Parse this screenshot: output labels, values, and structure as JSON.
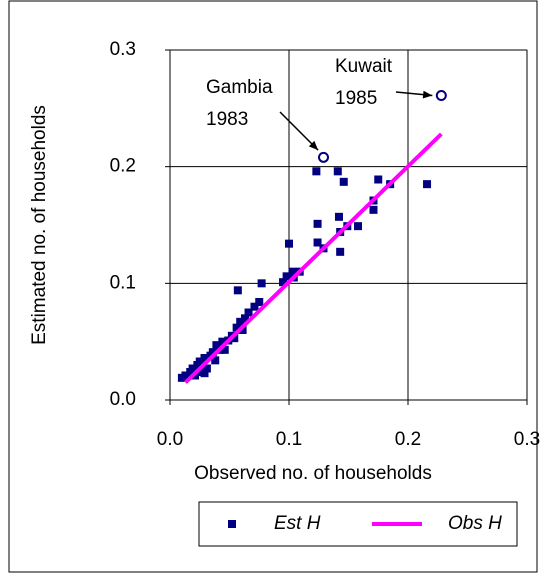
{
  "chart_data": {
    "type": "scatter",
    "xlabel": "Observed no. of households",
    "ylabel": "Estimated no. of households",
    "xlim": [
      0,
      0.3
    ],
    "ylim": [
      0,
      0.3
    ],
    "xticks": [
      {
        "value": 0,
        "label": "0.0"
      },
      0.1,
      0.2,
      0.3
    ],
    "yticks": [
      {
        "value": 0,
        "label": "0.0"
      },
      0.1,
      0.2,
      0.3
    ],
    "grid": true,
    "legend": "bottom",
    "series": [
      {
        "name": "Est H",
        "color": "#000080",
        "marker": "square",
        "x": [
          0.123,
          0.141,
          0.146,
          0.175,
          0.185,
          0.216,
          0.171,
          0.171,
          0.142,
          0.124,
          0.149,
          0.158,
          0.143,
          0.124,
          0.129,
          0.143,
          0.1,
          0.103,
          0.109,
          0.098,
          0.104,
          0.095,
          0.077,
          0.057,
          0.075,
          0.071,
          0.066,
          0.063,
          0.059,
          0.056,
          0.052,
          0.049,
          0.044,
          0.039,
          0.042,
          0.036,
          0.034,
          0.029,
          0.025,
          0.023,
          0.019,
          0.017,
          0.013,
          0.01,
          0.025,
          0.031,
          0.029,
          0.021,
          0.038,
          0.046,
          0.054,
          0.061
        ],
        "values": [
          0.196,
          0.196,
          0.187,
          0.189,
          0.185,
          0.185,
          0.171,
          0.163,
          0.157,
          0.151,
          0.149,
          0.149,
          0.144,
          0.135,
          0.13,
          0.127,
          0.134,
          0.11,
          0.11,
          0.106,
          0.105,
          0.101,
          0.1,
          0.094,
          0.084,
          0.08,
          0.075,
          0.07,
          0.067,
          0.062,
          0.055,
          0.051,
          0.05,
          0.047,
          0.043,
          0.041,
          0.038,
          0.036,
          0.033,
          0.03,
          0.027,
          0.024,
          0.021,
          0.019,
          0.024,
          0.027,
          0.023,
          0.021,
          0.034,
          0.043,
          0.053,
          0.06
        ]
      },
      {
        "name": "Obs H",
        "color": "#ff00ff",
        "marker": "line",
        "x": [
          0.013,
          0.228
        ],
        "values": [
          0.015,
          0.228
        ]
      }
    ],
    "annotations": [
      {
        "lines": [
          "Gambia",
          "1983"
        ],
        "x": 0.129,
        "y": 0.208
      },
      {
        "lines": [
          "Kuwait",
          "1985"
        ],
        "x": 0.228,
        "y": 0.261
      }
    ]
  }
}
